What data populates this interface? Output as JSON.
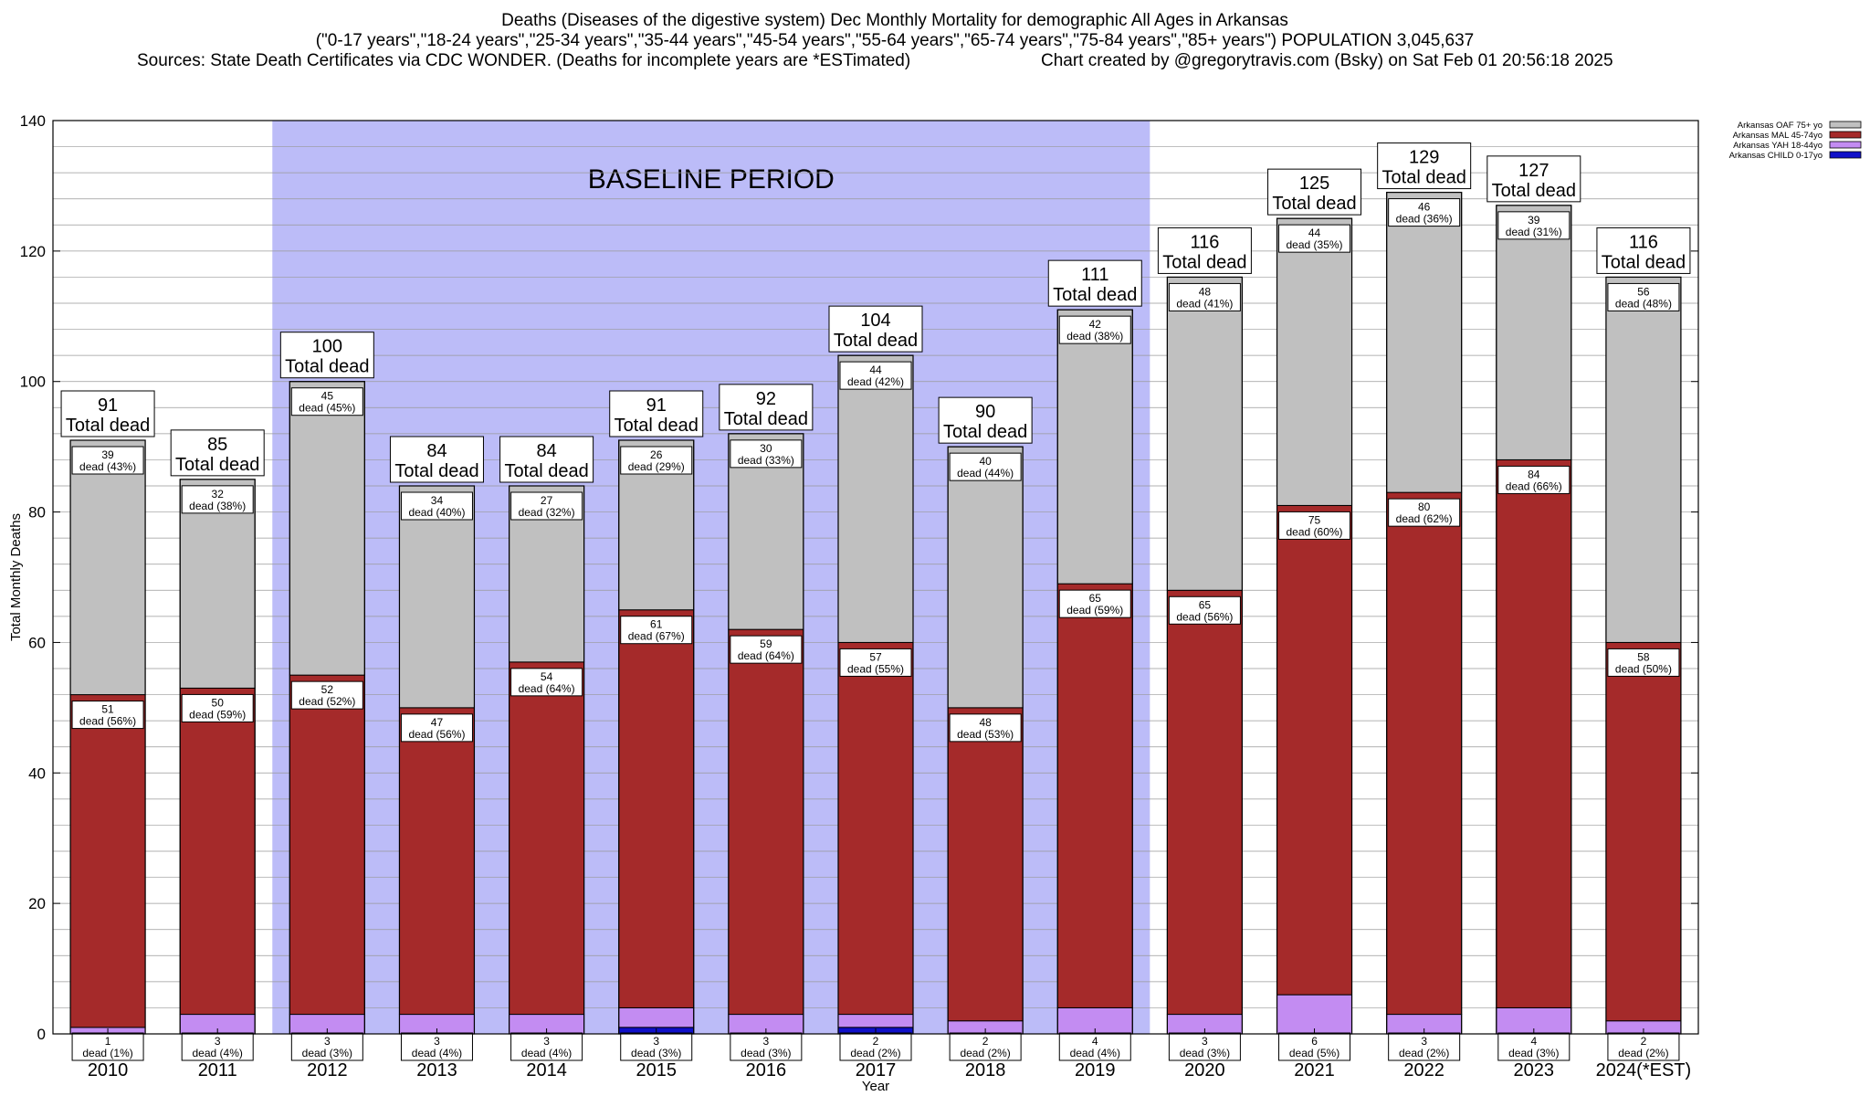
{
  "title": {
    "line1": "Deaths (Diseases of the digestive system) Dec Monthly Mortality for demographic All Ages in Arkansas",
    "line2": "(\"0-17 years\",\"18-24 years\",\"25-34 years\",\"35-44 years\",\"45-54 years\",\"55-64 years\",\"65-74 years\",\"75-84 years\",\"85+ years\") POPULATION 3,045,637",
    "sources": "Sources: State Death Certificates via CDC WONDER. (Deaths for incomplete years are *ESTimated)",
    "credit": "Chart created by @gregorytravis.com (Bsky) on Sat Feb 01 20:56:18 2025"
  },
  "colors": {
    "baseline": "#bcbcf8",
    "oaf": "#c0c0c0",
    "mal": "#a52a2a",
    "yah": "#c38cf2",
    "child": "#1010c8"
  },
  "chart_data": {
    "type": "bar",
    "stacked": true,
    "xlabel": "Year",
    "ylabel": "Total Monthly Deaths",
    "ylim": [
      0,
      140
    ],
    "yticks": [
      0,
      20,
      40,
      60,
      80,
      100,
      120,
      140
    ],
    "grid": true,
    "legend_position": "top-right",
    "baseline_label": "BASELINE PERIOD",
    "baseline_range": [
      "2012",
      "2019"
    ],
    "total_suffix": "Total dead",
    "categories": [
      "2010",
      "2011",
      "2012",
      "2013",
      "2014",
      "2015",
      "2016",
      "2017",
      "2018",
      "2019",
      "2020",
      "2021",
      "2022",
      "2023",
      "2024(*EST)"
    ],
    "series": [
      {
        "name": "Arkansas CHILD 0-17yo",
        "values": [
          0,
          0,
          0,
          0,
          0,
          1,
          0,
          1,
          0,
          0,
          0,
          0,
          0,
          0,
          0
        ]
      },
      {
        "name": "Arkansas YAH 18-44yo",
        "values": [
          1,
          3,
          3,
          3,
          3,
          3,
          3,
          2,
          2,
          4,
          3,
          6,
          3,
          4,
          2
        ]
      },
      {
        "name": "Arkansas MAL 45-74yo",
        "values": [
          51,
          50,
          52,
          47,
          54,
          61,
          59,
          57,
          48,
          65,
          65,
          75,
          80,
          84,
          58
        ]
      },
      {
        "name": "Arkansas OAF 75+ yo",
        "values": [
          39,
          32,
          45,
          34,
          27,
          26,
          30,
          44,
          40,
          42,
          48,
          44,
          46,
          39,
          56
        ]
      }
    ],
    "totals": [
      91,
      85,
      100,
      84,
      84,
      91,
      92,
      104,
      90,
      111,
      116,
      125,
      129,
      127,
      116
    ],
    "yah_labels": [
      "1\ndead (1%)",
      "3\ndead (4%)",
      "3\ndead (3%)",
      "3\ndead (4%)",
      "3\ndead (4%)",
      "3\ndead (3%)",
      "3\ndead (3%)",
      "2\ndead (2%)",
      "2\ndead (2%)",
      "4\ndead (4%)",
      "3\ndead (3%)",
      "6\ndead (5%)",
      "3\ndead (2%)",
      "4\ndead (3%)",
      "2\ndead (2%)"
    ],
    "mal_labels": [
      "51\ndead (56%)",
      "50\ndead (59%)",
      "52\ndead (52%)",
      "47\ndead (56%)",
      "54\ndead (64%)",
      "61\ndead (67%)",
      "59\ndead (64%)",
      "57\ndead (55%)",
      "48\ndead (53%)",
      "65\ndead (59%)",
      "65\ndead (56%)",
      "75\ndead (60%)",
      "80\ndead (62%)",
      "84\ndead (66%)",
      "58\ndead (50%)"
    ],
    "oaf_labels": [
      "39\ndead (43%)",
      "32\ndead (38%)",
      "45\ndead (45%)",
      "34\ndead (40%)",
      "27\ndead (32%)",
      "26\ndead (29%)",
      "30\ndead (33%)",
      "44\ndead (42%)",
      "40\ndead (44%)",
      "42\ndead (38%)",
      "48\ndead (41%)",
      "44\ndead (35%)",
      "46\ndead (36%)",
      "39\ndead (31%)",
      "56\ndead (48%)"
    ]
  }
}
